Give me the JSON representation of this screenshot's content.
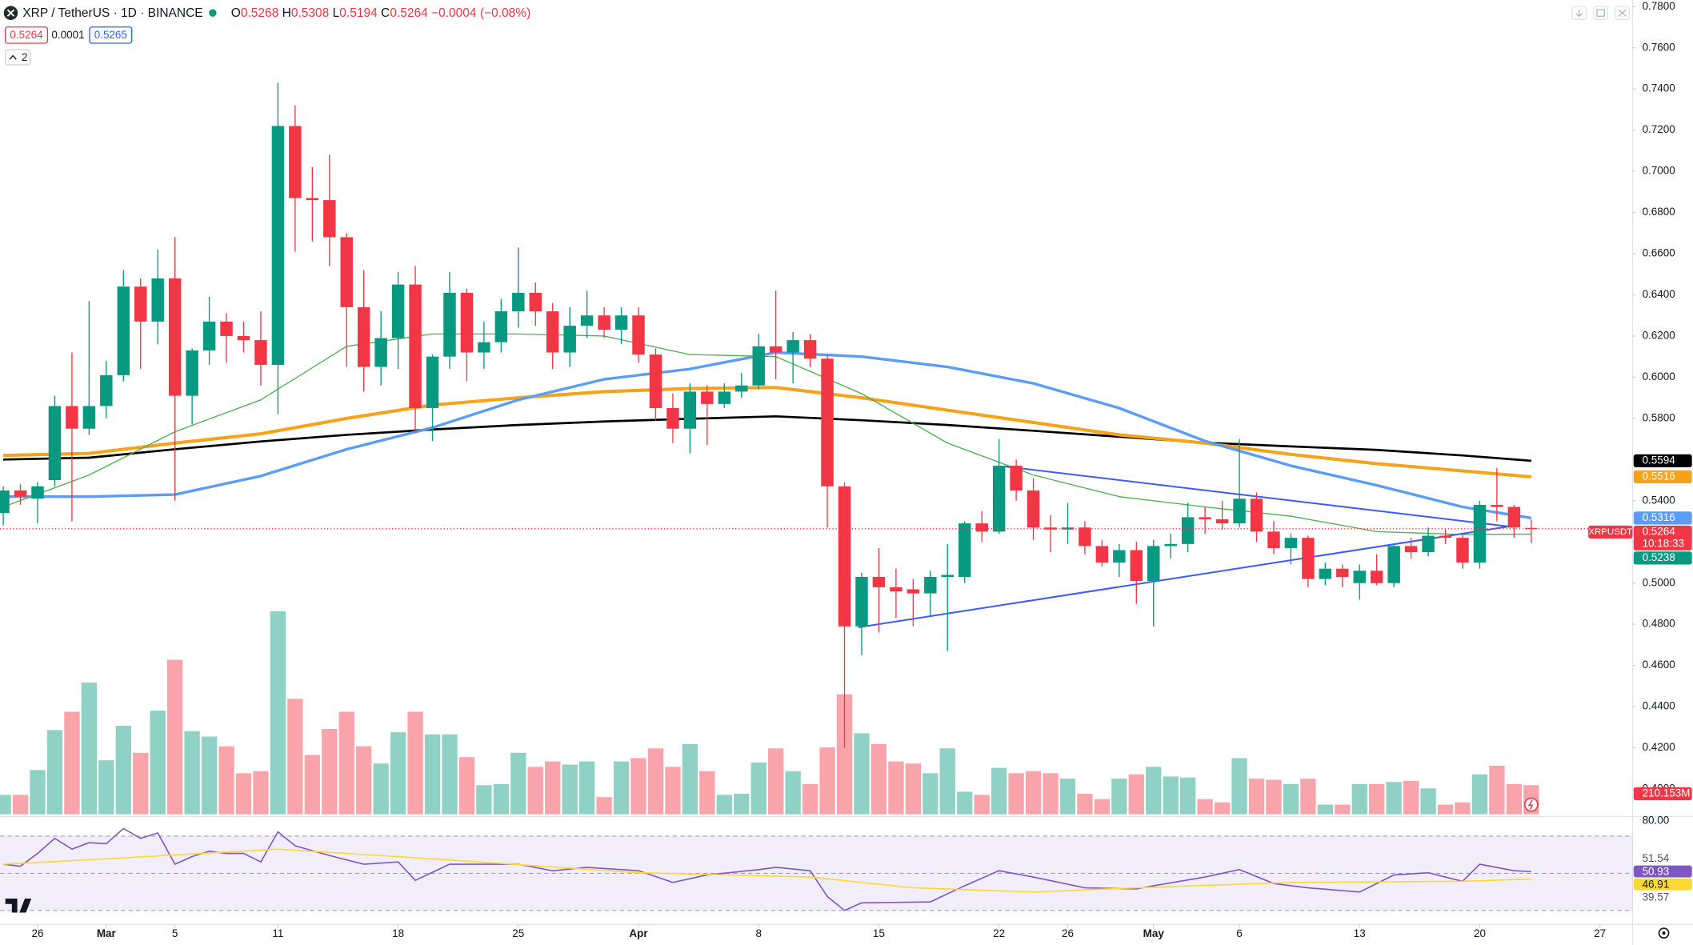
{
  "header": {
    "symbol": "XRP / TetherUS · 1D · BINANCE",
    "ohlc": [
      {
        "key": "O",
        "value": "0.5268"
      },
      {
        "key": "H",
        "value": "0.5308"
      },
      {
        "key": "L",
        "value": "0.5194"
      },
      {
        "key": "C",
        "value": "0.5264"
      }
    ],
    "change": "−0.0004 (−0.08%)"
  },
  "toolbar": {
    "sell": "0.5264",
    "spread": "0.0001",
    "buy": "0.5265",
    "indicators": "2"
  },
  "chart_data": [
    {
      "type": "candlestick",
      "up_color": "#089981",
      "down_color": "#f23645",
      "open": [
        0.534,
        0.545,
        0.541,
        0.55,
        0.586,
        0.575,
        0.586,
        0.601,
        0.644,
        0.627,
        0.648,
        0.591,
        0.613,
        0.627,
        0.62,
        0.618,
        0.606,
        0.722,
        0.687,
        0.686,
        0.668,
        0.634,
        0.605,
        0.619,
        0.645,
        0.585,
        0.61,
        0.641,
        0.612,
        0.617,
        0.632,
        0.641,
        0.632,
        0.612,
        0.625,
        0.63,
        0.623,
        0.63,
        0.611,
        0.585,
        0.575,
        0.593,
        0.587,
        0.593,
        0.596,
        0.615,
        0.612,
        0.618,
        0.609,
        0.547,
        0.479,
        0.503,
        0.498,
        0.497,
        0.495,
        0.503,
        0.503,
        0.529,
        0.525,
        0.557,
        0.545,
        0.527,
        0.526,
        0.527,
        0.518,
        0.51,
        0.516,
        0.501,
        0.518,
        0.519,
        0.532,
        0.531,
        0.529,
        0.541,
        0.525,
        0.517,
        0.522,
        0.502,
        0.507,
        0.5,
        0.506,
        0.5,
        0.518,
        0.515,
        0.523,
        0.522,
        0.51,
        0.538,
        0.537,
        0.5268
      ],
      "high": [
        0.547,
        0.548,
        0.549,
        0.591,
        0.612,
        0.637,
        0.608,
        0.652,
        0.648,
        0.662,
        0.668,
        0.614,
        0.639,
        0.631,
        0.627,
        0.632,
        0.743,
        0.732,
        0.702,
        0.708,
        0.67,
        0.652,
        0.632,
        0.651,
        0.654,
        0.611,
        0.651,
        0.643,
        0.627,
        0.638,
        0.663,
        0.646,
        0.636,
        0.634,
        0.642,
        0.634,
        0.634,
        0.634,
        0.614,
        0.592,
        0.597,
        0.596,
        0.597,
        0.602,
        0.621,
        0.642,
        0.622,
        0.621,
        0.611,
        0.549,
        0.505,
        0.517,
        0.507,
        0.502,
        0.506,
        0.519,
        0.53,
        0.535,
        0.57,
        0.56,
        0.551,
        0.533,
        0.539,
        0.53,
        0.521,
        0.519,
        0.52,
        0.521,
        0.524,
        0.539,
        0.537,
        0.54,
        0.57,
        0.544,
        0.53,
        0.524,
        0.523,
        0.51,
        0.509,
        0.509,
        0.514,
        0.519,
        0.522,
        0.527,
        0.526,
        0.524,
        0.54,
        0.556,
        0.538,
        0.5308
      ],
      "low": [
        0.528,
        0.538,
        0.529,
        0.547,
        0.53,
        0.572,
        0.58,
        0.598,
        0.604,
        0.616,
        0.54,
        0.577,
        0.606,
        0.607,
        0.612,
        0.596,
        0.582,
        0.661,
        0.666,
        0.654,
        0.605,
        0.593,
        0.596,
        0.604,
        0.573,
        0.569,
        0.604,
        0.598,
        0.604,
        0.612,
        0.624,
        0.625,
        0.604,
        0.605,
        0.619,
        0.619,
        0.616,
        0.607,
        0.579,
        0.568,
        0.563,
        0.567,
        0.585,
        0.59,
        0.594,
        0.599,
        0.597,
        0.605,
        0.527,
        0.42,
        0.465,
        0.476,
        0.483,
        0.479,
        0.484,
        0.467,
        0.5,
        0.52,
        0.524,
        0.54,
        0.521,
        0.515,
        0.519,
        0.514,
        0.508,
        0.503,
        0.49,
        0.479,
        0.512,
        0.515,
        0.524,
        0.526,
        0.527,
        0.52,
        0.514,
        0.509,
        0.498,
        0.499,
        0.498,
        0.492,
        0.499,
        0.498,
        0.512,
        0.513,
        0.519,
        0.507,
        0.507,
        0.53,
        0.522,
        0.5194
      ],
      "close": [
        0.545,
        0.542,
        0.547,
        0.586,
        0.575,
        0.586,
        0.601,
        0.644,
        0.627,
        0.648,
        0.591,
        0.613,
        0.627,
        0.62,
        0.618,
        0.606,
        0.722,
        0.687,
        0.686,
        0.668,
        0.634,
        0.605,
        0.619,
        0.645,
        0.585,
        0.61,
        0.641,
        0.612,
        0.617,
        0.632,
        0.641,
        0.632,
        0.612,
        0.625,
        0.63,
        0.623,
        0.63,
        0.611,
        0.585,
        0.575,
        0.593,
        0.587,
        0.593,
        0.596,
        0.615,
        0.612,
        0.618,
        0.609,
        0.547,
        0.479,
        0.503,
        0.498,
        0.496,
        0.495,
        0.503,
        0.504,
        0.529,
        0.525,
        0.557,
        0.545,
        0.527,
        0.526,
        0.527,
        0.518,
        0.51,
        0.516,
        0.501,
        0.518,
        0.519,
        0.532,
        0.531,
        0.529,
        0.541,
        0.525,
        0.517,
        0.522,
        0.502,
        0.507,
        0.503,
        0.506,
        0.5,
        0.518,
        0.515,
        0.523,
        0.522,
        0.51,
        0.538,
        0.537,
        0.527,
        0.5264
      ],
      "close_label": "0.5264",
      "symbol_label": "XRPUSDT",
      "countdown": "10:18:33",
      "volume": [
        140,
        140,
        319,
        607,
        739,
        949,
        389,
        638,
        443,
        747,
        1113,
        599,
        560,
        490,
        296,
        311,
        1463,
        832,
        428,
        615,
        739,
        490,
        366,
        591,
        739,
        576,
        576,
        412,
        210,
        218,
        443,
        342,
        381,
        358,
        381,
        124,
        381,
        405,
        475,
        342,
        506,
        311,
        140,
        148,
        373,
        475,
        311,
        218,
        482,
        864,
        584,
        506,
        381,
        366,
        296,
        475,
        163,
        140,
        335,
        296,
        311,
        296,
        257,
        148,
        109,
        257,
        288,
        342,
        272,
        265,
        109,
        86,
        405,
        257,
        249,
        218,
        257,
        70,
        70,
        218,
        218,
        233,
        241,
        187,
        70,
        86,
        288,
        350,
        218,
        210.153
      ],
      "volume_last_label": "210.153M",
      "vlim": [
        0,
        5866
      ],
      "series": [
        {
          "color": "#000000",
          "width": 2,
          "x": [
            0,
            5,
            10,
            15,
            20,
            25,
            30,
            35,
            40,
            45,
            50,
            55,
            60,
            65,
            70,
            75,
            80,
            85,
            89
          ],
          "values": [
            0.56,
            0.5609,
            0.565,
            0.5688,
            0.572,
            0.5746,
            0.5768,
            0.5785,
            0.5798,
            0.581,
            0.5791,
            0.5768,
            0.574,
            0.5711,
            0.5682,
            0.5664,
            0.5647,
            0.562,
            0.5594
          ],
          "last_label": "0.5594"
        },
        {
          "color": "#f7a21b",
          "width": 3,
          "x": [
            0,
            5,
            10,
            15,
            20,
            25,
            30,
            35,
            40,
            45,
            50,
            55,
            60,
            65,
            70,
            75,
            80,
            85,
            89
          ],
          "values": [
            0.562,
            0.563,
            0.568,
            0.5725,
            0.58,
            0.5865,
            0.59,
            0.593,
            0.5945,
            0.595,
            0.59,
            0.584,
            0.578,
            0.572,
            0.568,
            0.5625,
            0.558,
            0.5545,
            0.5516
          ],
          "last_label": "0.5516"
        },
        {
          "color": "#5b9cf6",
          "width": 2.5,
          "x": [
            0,
            5,
            10,
            15,
            20,
            25,
            30,
            35,
            40,
            45,
            50,
            55,
            60,
            65,
            70,
            75,
            80,
            85,
            89
          ],
          "values": [
            0.542,
            0.542,
            0.543,
            0.552,
            0.565,
            0.5755,
            0.589,
            0.599,
            0.604,
            0.612,
            0.61,
            0.605,
            0.597,
            0.585,
            0.569,
            0.557,
            0.5475,
            0.537,
            0.5316
          ],
          "last_label": "0.5316"
        },
        {
          "color": "#4caf50",
          "width": 1,
          "x": [
            0,
            5,
            10,
            15,
            20,
            25,
            30,
            35,
            40,
            45,
            50,
            55,
            60,
            65,
            70,
            75,
            80,
            85,
            89
          ],
          "values": [
            0.537,
            0.5525,
            0.5735,
            0.589,
            0.615,
            0.621,
            0.621,
            0.62,
            0.611,
            0.61,
            0.592,
            0.568,
            0.5525,
            0.542,
            0.537,
            0.5325,
            0.525,
            0.5236,
            0.5238
          ],
          "last_label": "0.5238",
          "label_color": "#089981"
        }
      ],
      "trendlines": [
        {
          "color": "#3d5afe",
          "x": [
            49.8,
            87.9
          ],
          "values": [
            0.4785,
            0.5278
          ]
        },
        {
          "color": "#3d5afe",
          "x": [
            58.3,
            87.9
          ],
          "values": [
            0.5567,
            0.5273
          ]
        }
      ],
      "xlim": [
        -0.19,
        94.9
      ],
      "xticks": [
        {
          "value": 2,
          "label": "26"
        },
        {
          "value": 6,
          "label": "Mar"
        },
        {
          "value": 10,
          "label": "5"
        },
        {
          "value": 16,
          "label": "11"
        },
        {
          "value": 23,
          "label": "18"
        },
        {
          "value": 30,
          "label": "25"
        },
        {
          "value": 37,
          "label": "Apr"
        },
        {
          "value": 44,
          "label": "8"
        },
        {
          "value": 51,
          "label": "15"
        },
        {
          "value": 58,
          "label": "22"
        },
        {
          "value": 62,
          "label": "26"
        },
        {
          "value": 67,
          "label": "May"
        },
        {
          "value": 72,
          "label": "6"
        },
        {
          "value": 79,
          "label": "13"
        },
        {
          "value": 86,
          "label": "20"
        },
        {
          "value": 93,
          "label": "27"
        }
      ],
      "ylim": [
        0.3877,
        0.7832
      ],
      "yticks": [
        {
          "value": 0.4,
          "label": "0.4000"
        },
        {
          "value": 0.42,
          "label": "0.4200"
        },
        {
          "value": 0.44,
          "label": "0.4400"
        },
        {
          "value": 0.46,
          "label": "0.4600"
        },
        {
          "value": 0.48,
          "label": "0.4800"
        },
        {
          "value": 0.5,
          "label": "0.5000"
        },
        {
          "value": 0.52,
          "label": "0.5200"
        },
        {
          "value": 0.54,
          "label": "0.5400"
        },
        {
          "value": 0.56,
          "label": "0.5600"
        },
        {
          "value": 0.58,
          "label": "0.5800"
        },
        {
          "value": 0.6,
          "label": "0.6000"
        },
        {
          "value": 0.62,
          "label": "0.6200"
        },
        {
          "value": 0.64,
          "label": "0.6400"
        },
        {
          "value": 0.66,
          "label": "0.6600"
        },
        {
          "value": 0.68,
          "label": "0.6800"
        },
        {
          "value": 0.7,
          "label": "0.7000"
        },
        {
          "value": 0.72,
          "label": "0.7200"
        },
        {
          "value": 0.74,
          "label": "0.7400"
        },
        {
          "value": 0.76,
          "label": "0.7600"
        },
        {
          "value": 0.78,
          "label": "0.7800"
        }
      ],
      "grid": false
    },
    {
      "type": "line",
      "xlim": [
        -0.19,
        94.9
      ],
      "ylim": [
        22.46,
        80
      ],
      "yticks": [
        {
          "value": 80,
          "label": "80.00"
        }
      ],
      "levels": [
        30,
        50,
        70
      ],
      "axis_labels": [
        51.54,
        39.57
      ],
      "series": [
        {
          "color": "#7e57c2",
          "x": [
            0,
            1,
            2,
            3,
            4,
            5,
            6,
            7,
            8,
            9,
            10,
            11,
            12,
            13,
            14,
            15,
            16,
            17,
            19,
            21,
            23,
            24,
            26,
            28,
            30,
            32,
            34,
            37,
            39,
            41,
            44,
            45,
            47,
            48,
            49,
            50,
            54,
            56,
            58,
            60,
            63,
            66,
            67,
            70,
            72,
            74,
            76,
            79,
            81,
            83,
            85,
            86,
            88,
            89
          ],
          "values": [
            54.9,
            53.8,
            60.7,
            68.8,
            63.0,
            66.5,
            65.9,
            74.1,
            68.8,
            71.7,
            54.9,
            59.0,
            61.9,
            60.7,
            60.7,
            56.1,
            72.3,
            64.8,
            59.6,
            54.9,
            56.1,
            46.2,
            54.9,
            54.9,
            54.9,
            51.4,
            53.2,
            51.4,
            45.1,
            49.1,
            52.0,
            53.2,
            51.4,
            37.5,
            30.0,
            34.1,
            34.6,
            43.3,
            51.4,
            48.0,
            42.2,
            41.6,
            43.3,
            48.0,
            52.0,
            44.5,
            42.2,
            39.9,
            49.1,
            50.3,
            45.7,
            54.9,
            51.4,
            50.93
          ],
          "last_label": "50.93",
          "label_text": "#ffffff"
        },
        {
          "color": "#fdd835",
          "x": [
            0,
            6,
            16,
            25,
            37,
            47,
            53,
            60,
            66,
            75,
            85,
            89
          ],
          "values": [
            54.9,
            57.8,
            63.0,
            57.8,
            50.3,
            48.0,
            42.2,
            39.9,
            42.2,
            45.1,
            45.7,
            46.91
          ],
          "last_label": "46.91",
          "label_text": "#131722"
        }
      ]
    }
  ]
}
